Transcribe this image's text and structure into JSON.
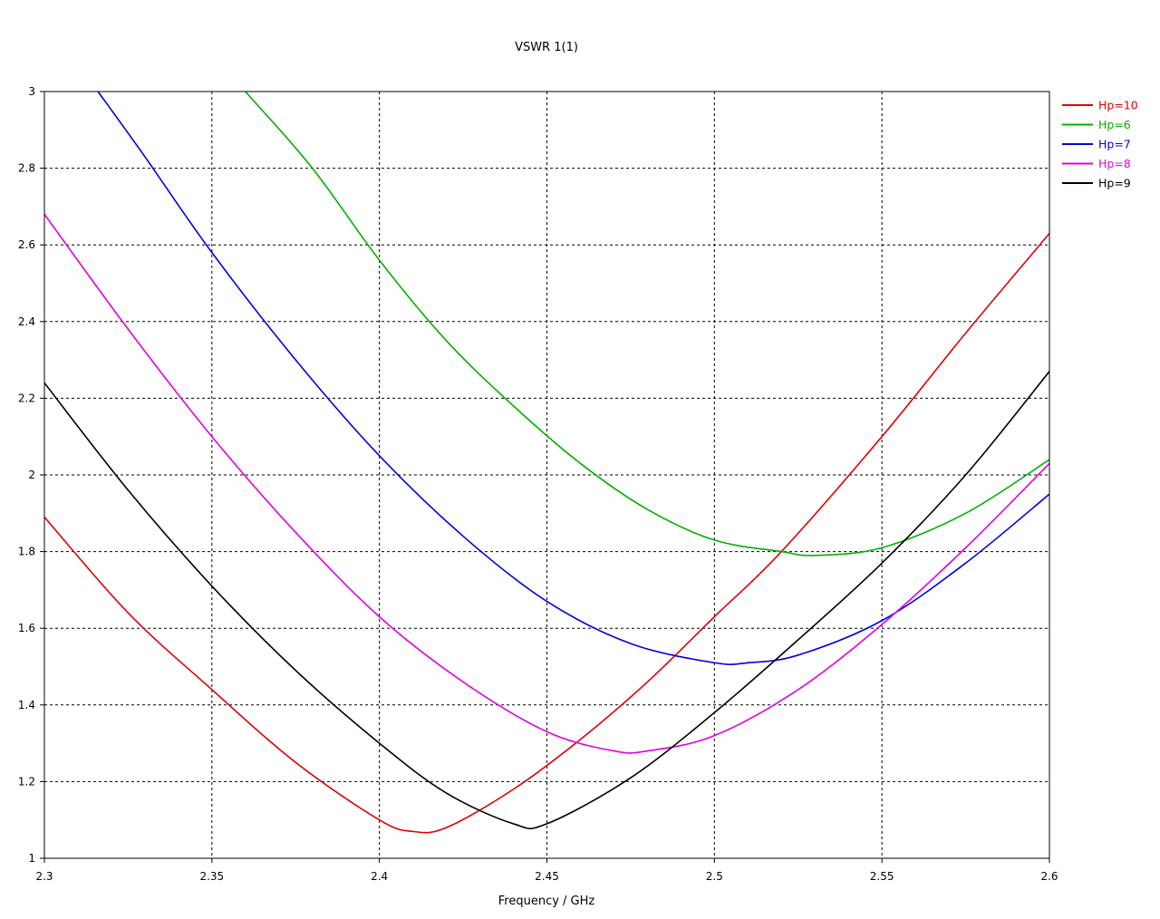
{
  "chart_data": {
    "type": "line",
    "title": "VSWR 1(1)",
    "xlabel": "Frequency / GHz",
    "ylabel": "",
    "xlim": [
      2.3,
      2.6
    ],
    "ylim": [
      1,
      3
    ],
    "x_ticks": [
      "2.3",
      "2.35",
      "2.4",
      "2.45",
      "2.5",
      "2.55",
      "2.6"
    ],
    "y_ticks": [
      "1",
      "1.2",
      "1.4",
      "1.6",
      "1.8",
      "2",
      "2.2",
      "2.4",
      "2.6",
      "2.8",
      "3"
    ],
    "grid": true,
    "legend_position": "right-top",
    "series": [
      {
        "name": "Hp=10",
        "color": "#e00000",
        "x": [
          2.3,
          2.325,
          2.35,
          2.375,
          2.4,
          2.41,
          2.42,
          2.44,
          2.46,
          2.48,
          2.5,
          2.52,
          2.55,
          2.575,
          2.6
        ],
        "y": [
          1.89,
          1.64,
          1.44,
          1.25,
          1.1,
          1.07,
          1.08,
          1.18,
          1.31,
          1.46,
          1.63,
          1.8,
          2.1,
          2.37,
          2.63
        ]
      },
      {
        "name": "Hp=6",
        "color": "#00b000",
        "x": [
          2.36,
          2.38,
          2.4,
          2.42,
          2.44,
          2.46,
          2.48,
          2.5,
          2.52,
          2.53,
          2.55,
          2.575,
          2.6
        ],
        "y": [
          3.0,
          2.8,
          2.56,
          2.35,
          2.18,
          2.03,
          1.91,
          1.83,
          1.8,
          1.79,
          1.81,
          1.9,
          2.04
        ]
      },
      {
        "name": "Hp=7",
        "color": "#0000e0",
        "x": [
          2.316,
          2.33,
          2.35,
          2.375,
          2.4,
          2.425,
          2.45,
          2.475,
          2.5,
          2.51,
          2.525,
          2.55,
          2.575,
          2.6
        ],
        "y": [
          3.0,
          2.83,
          2.58,
          2.3,
          2.05,
          1.84,
          1.67,
          1.56,
          1.51,
          1.51,
          1.53,
          1.62,
          1.77,
          1.95
        ]
      },
      {
        "name": "Hp=8",
        "color": "#e000e0",
        "x": [
          2.3,
          2.325,
          2.35,
          2.375,
          2.4,
          2.425,
          2.45,
          2.47,
          2.48,
          2.5,
          2.525,
          2.55,
          2.575,
          2.6
        ],
        "y": [
          2.68,
          2.38,
          2.1,
          1.85,
          1.63,
          1.46,
          1.33,
          1.28,
          1.28,
          1.32,
          1.44,
          1.61,
          1.81,
          2.03
        ]
      },
      {
        "name": "Hp=9",
        "color": "#000000",
        "x": [
          2.3,
          2.325,
          2.35,
          2.375,
          2.4,
          2.42,
          2.44,
          2.45,
          2.475,
          2.5,
          2.525,
          2.55,
          2.575,
          2.6
        ],
        "y": [
          2.24,
          1.96,
          1.71,
          1.49,
          1.3,
          1.17,
          1.09,
          1.09,
          1.21,
          1.38,
          1.57,
          1.77,
          2.0,
          2.27
        ]
      }
    ]
  }
}
